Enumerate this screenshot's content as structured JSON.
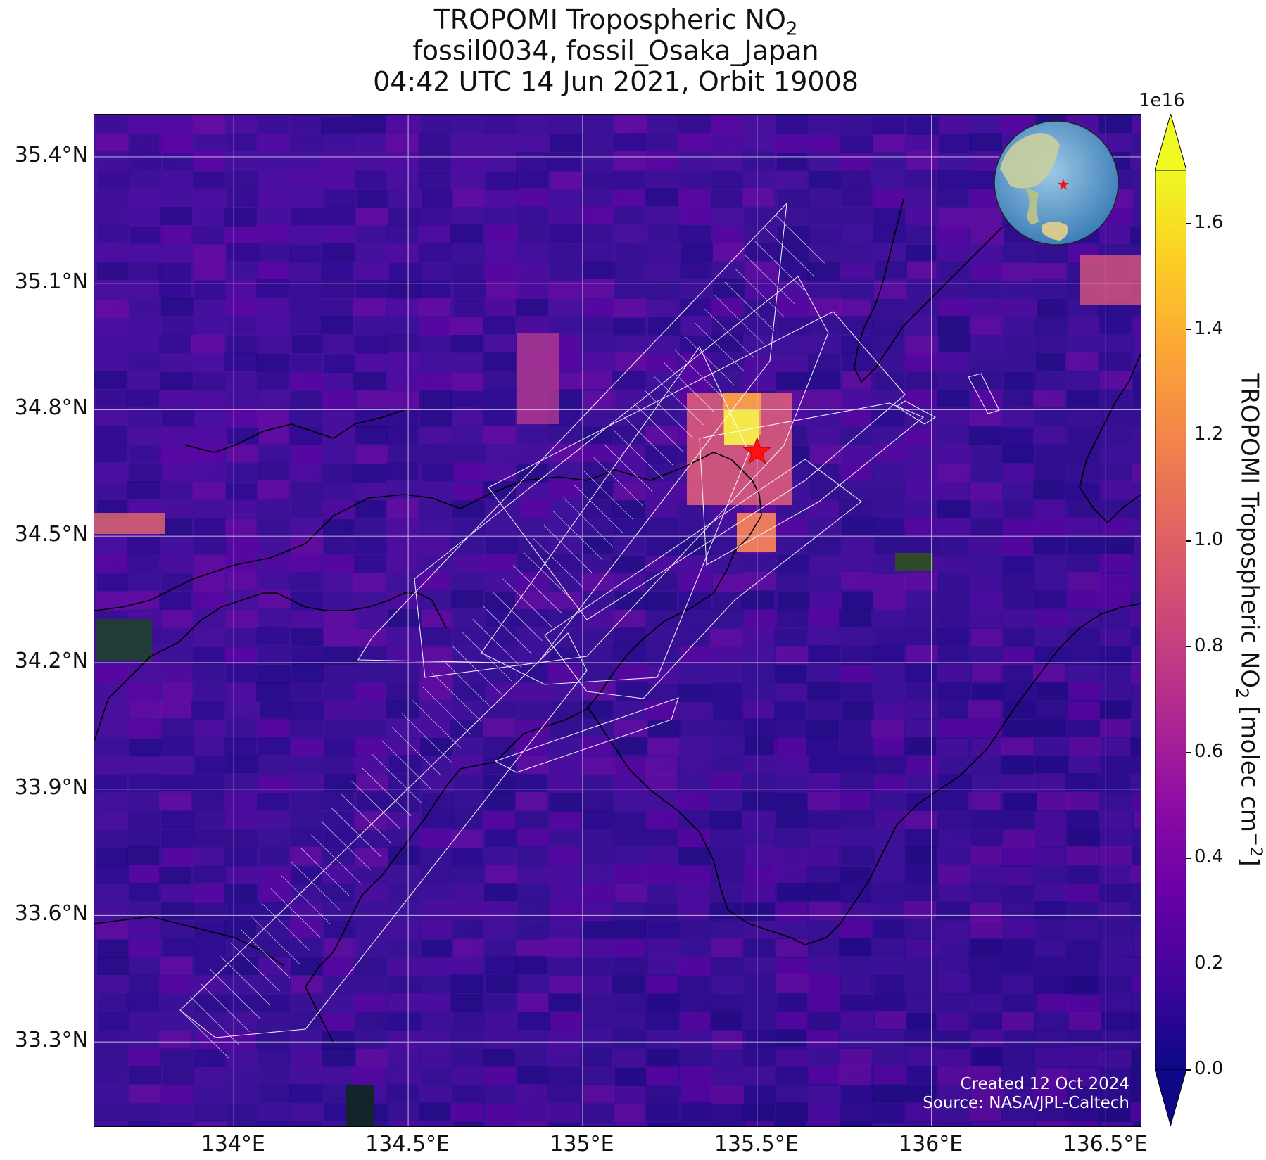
{
  "title": {
    "line1_prefix": "TROPOMI Tropospheric NO",
    "line1_sub": "2",
    "line2": "fossil0034, fossil_Osaka_Japan",
    "line3": "04:42 UTC 14 Jun 2021, Orbit 19008"
  },
  "map": {
    "lon_range": [
      133.6,
      136.6
    ],
    "lat_range": [
      33.1,
      35.5
    ],
    "site": {
      "lon": 135.5,
      "lat": 34.7,
      "marker": "red-star"
    },
    "lat_ticks": [
      "35.4°N",
      "35.1°N",
      "34.8°N",
      "34.5°N",
      "34.2°N",
      "33.9°N",
      "33.6°N",
      "33.3°N"
    ],
    "lat_tick_values": [
      35.4,
      35.1,
      34.8,
      34.5,
      34.2,
      33.9,
      33.6,
      33.3
    ],
    "lon_ticks": [
      "134°E",
      "134.5°E",
      "135°E",
      "135.5°E",
      "136°E",
      "136.5°E"
    ],
    "lon_tick_values": [
      134.0,
      134.5,
      135.0,
      135.5,
      136.0,
      136.5
    ],
    "gridlines": true,
    "background_color": "#3a1396",
    "footprint_color": "#ffffff",
    "inset": "globe-inset"
  },
  "colorbar": {
    "colormap": "plasma",
    "ticks": [
      "0.0",
      "0.2",
      "0.4",
      "0.6",
      "0.8",
      "1.0",
      "1.2",
      "1.4",
      "1.6"
    ],
    "tick_values": [
      0.0,
      0.2,
      0.4,
      0.6,
      0.8,
      1.0,
      1.2,
      1.4,
      1.6
    ],
    "range": [
      0.0,
      1.7
    ],
    "exponent": "1e16",
    "label_prefix": "TROPOMI Tropospheric NO",
    "label_sub": "2",
    "label_mid": " [molec cm",
    "label_sup": "−2",
    "label_suffix": "]",
    "extend": "both"
  },
  "credits": {
    "created": "Created 12 Oct 2024",
    "source": "Source: NASA/JPL-Caltech"
  }
}
